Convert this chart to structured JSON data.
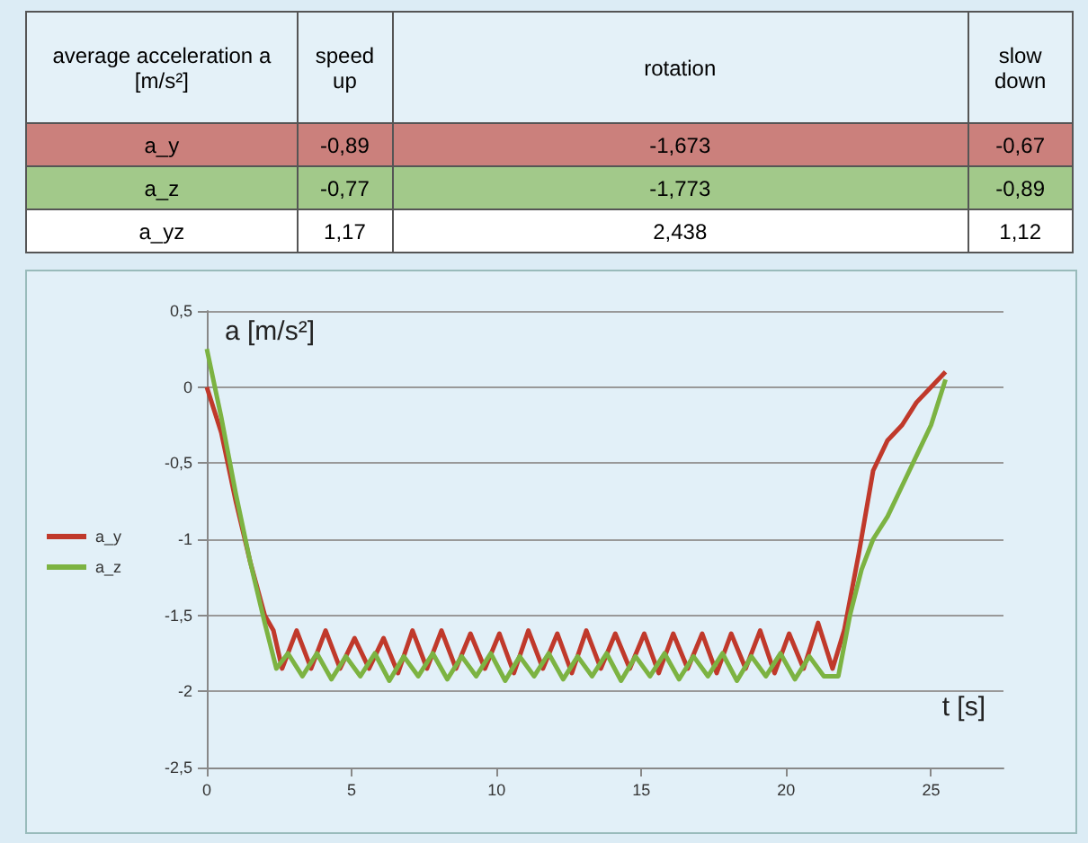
{
  "chart_data": [
    {
      "type": "other",
      "annotations": [
        "average acceleration a [m/s²]",
        "speed up",
        "rotation",
        "slow down",
        "a_y",
        "-0,89",
        "-1,673",
        "-0,67",
        "a_z",
        "-0,77",
        "-1,773",
        "-0,89",
        "a_yz",
        "1,17",
        "2,438",
        "1,12"
      ]
    },
    {
      "type": "line",
      "xlabel": "t [s]",
      "ylabel": "a [m/s²]",
      "xlim": [
        0,
        27.5
      ],
      "xticks": [
        0,
        5,
        10,
        15,
        20,
        25
      ],
      "ylim": [
        -2.5,
        0.5
      ],
      "yticks": [
        {
          "value": -2.5,
          "label": "-2,5"
        },
        -2,
        {
          "value": -1.5,
          "label": "-1,5"
        },
        -1,
        {
          "value": -0.5,
          "label": "-0,5"
        },
        0,
        {
          "value": 0.5,
          "label": "0,5"
        }
      ],
      "grid": "y",
      "legend": "left",
      "marker": "none",
      "line_style": "solid",
      "series": [
        {
          "name": "a_y",
          "color": "#c0392b",
          "x": [
            0,
            0.5,
            1,
            1.5,
            2,
            2.3,
            2.6,
            3.1,
            3.6,
            4.1,
            4.6,
            5.1,
            5.6,
            6.1,
            6.6,
            7.1,
            7.6,
            8.1,
            8.6,
            9.1,
            9.6,
            10.1,
            10.6,
            11.1,
            11.6,
            12.1,
            12.6,
            13.1,
            13.6,
            14.1,
            14.6,
            15.1,
            15.6,
            16.1,
            16.6,
            17.1,
            17.6,
            18.1,
            18.6,
            19.1,
            19.6,
            20.1,
            20.6,
            21.1,
            21.6,
            22,
            22.5,
            23,
            23.5,
            24,
            24.5,
            25,
            25.5
          ],
          "values": [
            0,
            -0.3,
            -0.75,
            -1.15,
            -1.5,
            -1.6,
            -1.85,
            -1.6,
            -1.85,
            -1.6,
            -1.85,
            -1.65,
            -1.85,
            -1.65,
            -1.88,
            -1.6,
            -1.85,
            -1.6,
            -1.85,
            -1.62,
            -1.85,
            -1.62,
            -1.88,
            -1.6,
            -1.85,
            -1.62,
            -1.88,
            -1.6,
            -1.85,
            -1.62,
            -1.85,
            -1.62,
            -1.88,
            -1.62,
            -1.85,
            -1.62,
            -1.88,
            -1.62,
            -1.85,
            -1.6,
            -1.88,
            -1.62,
            -1.85,
            -1.55,
            -1.85,
            -1.6,
            -1.1,
            -0.55,
            -0.35,
            -0.25,
            -0.1,
            0,
            0.1
          ]
        },
        {
          "name": "a_z",
          "color": "#7cb342",
          "x": [
            0,
            0.5,
            1,
            1.5,
            2,
            2.4,
            2.8,
            3.3,
            3.8,
            4.3,
            4.8,
            5.3,
            5.8,
            6.3,
            6.8,
            7.3,
            7.8,
            8.3,
            8.8,
            9.3,
            9.8,
            10.3,
            10.8,
            11.3,
            11.8,
            12.3,
            12.8,
            13.3,
            13.8,
            14.3,
            14.8,
            15.3,
            15.8,
            16.3,
            16.8,
            17.3,
            17.8,
            18.3,
            18.8,
            19.3,
            19.8,
            20.3,
            20.8,
            21.3,
            21.8,
            22.2,
            22.6,
            23,
            23.5,
            24,
            24.5,
            25,
            25.5
          ],
          "values": [
            0.25,
            -0.2,
            -0.7,
            -1.15,
            -1.55,
            -1.85,
            -1.75,
            -1.9,
            -1.75,
            -1.92,
            -1.77,
            -1.9,
            -1.75,
            -1.93,
            -1.77,
            -1.9,
            -1.75,
            -1.92,
            -1.77,
            -1.9,
            -1.75,
            -1.93,
            -1.77,
            -1.9,
            -1.75,
            -1.92,
            -1.77,
            -1.9,
            -1.75,
            -1.93,
            -1.77,
            -1.9,
            -1.75,
            -1.92,
            -1.77,
            -1.9,
            -1.75,
            -1.93,
            -1.77,
            -1.9,
            -1.75,
            -1.92,
            -1.77,
            -1.9,
            -1.9,
            -1.5,
            -1.2,
            -1.0,
            -0.85,
            -0.65,
            -0.45,
            -0.25,
            0.05
          ]
        }
      ]
    }
  ]
}
